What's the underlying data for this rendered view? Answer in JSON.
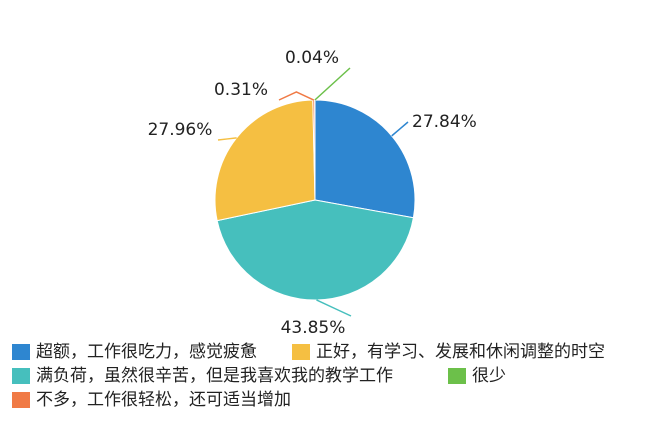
{
  "chart_data": {
    "type": "pie",
    "categories": [
      "超额，工作很吃力，感觉疲惫",
      "满负荷，虽然很辛苦，但是我喜欢我的教学工作",
      "正好，有学习、发展和休闲调整的时空",
      "不多，工作很轻松，还可适当增加",
      "很少"
    ],
    "values": [
      27.84,
      43.85,
      27.96,
      0.31,
      0.04
    ],
    "value_labels": [
      "27.84%",
      "43.85%",
      "27.96%",
      "0.31%",
      "0.04%"
    ],
    "colors": [
      "#2e86d0",
      "#46bfbd",
      "#f5bf42",
      "#f07a45",
      "#6cc04a"
    ]
  }
}
